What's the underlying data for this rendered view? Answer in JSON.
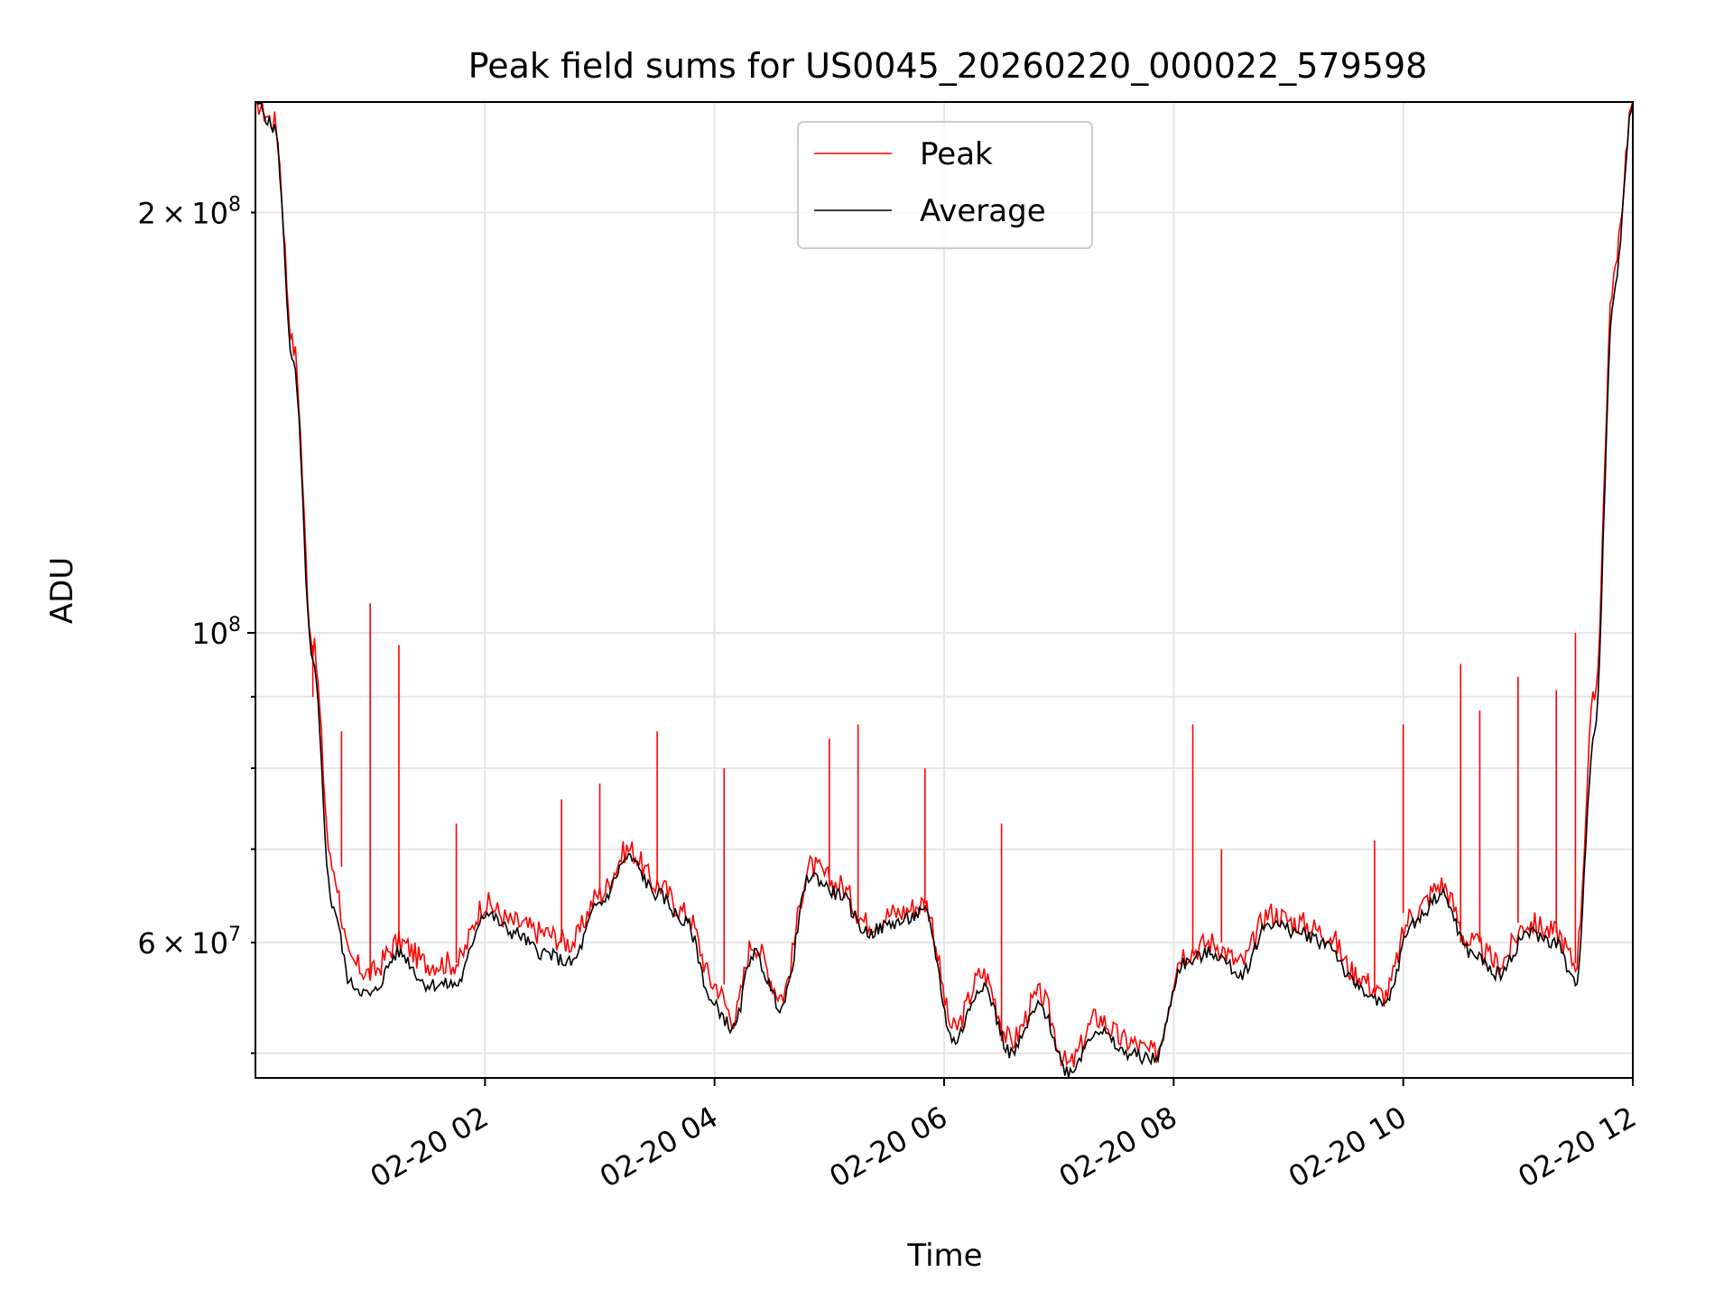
{
  "chart_data": {
    "type": "line",
    "title": "Peak field sums for US0045_20260220_000022_579598",
    "xlabel": "Time",
    "ylabel": "ADU",
    "x_range": [
      "2026-02-20 00:00",
      "2026-02-20 12:00"
    ],
    "ylim": [
      48000000,
      240000000
    ],
    "yscale": "log",
    "grid": true,
    "legend_position": "upper center",
    "x_ticks": [
      {
        "value": "2026-02-20 02:00",
        "label": "02-20 02"
      },
      {
        "value": "2026-02-20 04:00",
        "label": "02-20 04"
      },
      {
        "value": "2026-02-20 06:00",
        "label": "02-20 06"
      },
      {
        "value": "2026-02-20 08:00",
        "label": "02-20 08"
      },
      {
        "value": "2026-02-20 10:00",
        "label": "02-20 10"
      },
      {
        "value": "2026-02-20 12:00",
        "label": "02-20 12"
      }
    ],
    "y_ticks_major": [
      {
        "value": 100000000,
        "mantissa": "",
        "exponent": "8"
      }
    ],
    "y_ticks_minor": [
      {
        "value": 60000000,
        "mantissa": "6",
        "exponent": "7"
      },
      {
        "value": 200000000,
        "mantissa": "2",
        "exponent": "8"
      }
    ],
    "y_ticks_unlabeled": [
      50000000,
      70000000,
      80000000,
      90000000
    ],
    "series": [
      {
        "name": "Peak",
        "color": "#ff0000",
        "points": [
          [
            "2026-02-20 00:00",
            240000000
          ],
          [
            "2026-02-20 00:10",
            232000000
          ],
          [
            "2026-02-20 00:20",
            160000000
          ],
          [
            "2026-02-20 00:30",
            98000000
          ],
          [
            "2026-02-20 00:40",
            68000000
          ],
          [
            "2026-02-20 00:50",
            58000000
          ],
          [
            "2026-02-20 01:00",
            57000000
          ],
          [
            "2026-02-20 01:15",
            60000000
          ],
          [
            "2026-02-20 01:30",
            58000000
          ],
          [
            "2026-02-20 01:45",
            58000000
          ],
          [
            "2026-02-20 02:00",
            64000000
          ],
          [
            "2026-02-20 02:15",
            62000000
          ],
          [
            "2026-02-20 02:30",
            61000000
          ],
          [
            "2026-02-20 02:45",
            60000000
          ],
          [
            "2026-02-20 03:00",
            65000000
          ],
          [
            "2026-02-20 03:15",
            70000000
          ],
          [
            "2026-02-20 03:30",
            66000000
          ],
          [
            "2026-02-20 03:45",
            63000000
          ],
          [
            "2026-02-20 04:00",
            56000000
          ],
          [
            "2026-02-20 04:10",
            53000000
          ],
          [
            "2026-02-20 04:20",
            60000000
          ],
          [
            "2026-02-20 04:35",
            55000000
          ],
          [
            "2026-02-20 04:50",
            68000000
          ],
          [
            "2026-02-20 05:05",
            66000000
          ],
          [
            "2026-02-20 05:20",
            62000000
          ],
          [
            "2026-02-20 05:35",
            63000000
          ],
          [
            "2026-02-20 05:50",
            64000000
          ],
          [
            "2026-02-20 06:05",
            52000000
          ],
          [
            "2026-02-20 06:20",
            57000000
          ],
          [
            "2026-02-20 06:35",
            51000000
          ],
          [
            "2026-02-20 06:50",
            55000000
          ],
          [
            "2026-02-20 07:05",
            49000000
          ],
          [
            "2026-02-20 07:20",
            53000000
          ],
          [
            "2026-02-20 07:35",
            51000000
          ],
          [
            "2026-02-20 07:50",
            50000000
          ],
          [
            "2026-02-20 08:05",
            59000000
          ],
          [
            "2026-02-20 08:20",
            60000000
          ],
          [
            "2026-02-20 08:35",
            58000000
          ],
          [
            "2026-02-20 08:50",
            63000000
          ],
          [
            "2026-02-20 09:05",
            62000000
          ],
          [
            "2026-02-20 09:20",
            61000000
          ],
          [
            "2026-02-20 09:35",
            57000000
          ],
          [
            "2026-02-20 09:50",
            55000000
          ],
          [
            "2026-02-20 10:05",
            63000000
          ],
          [
            "2026-02-20 10:20",
            66000000
          ],
          [
            "2026-02-20 10:35",
            60000000
          ],
          [
            "2026-02-20 10:50",
            58000000
          ],
          [
            "2026-02-20 11:05",
            62000000
          ],
          [
            "2026-02-20 11:20",
            61000000
          ],
          [
            "2026-02-20 11:30",
            58000000
          ],
          [
            "2026-02-20 11:40",
            90000000
          ],
          [
            "2026-02-20 11:50",
            180000000
          ],
          [
            "2026-02-20 12:00",
            240000000
          ]
        ],
        "spikes": [
          [
            "2026-02-20 00:30",
            90000000
          ],
          [
            "2026-02-20 00:45",
            85000000
          ],
          [
            "2026-02-20 01:00",
            105000000
          ],
          [
            "2026-02-20 01:15",
            98000000
          ],
          [
            "2026-02-20 01:45",
            73000000
          ],
          [
            "2026-02-20 02:40",
            76000000
          ],
          [
            "2026-02-20 03:00",
            78000000
          ],
          [
            "2026-02-20 03:30",
            85000000
          ],
          [
            "2026-02-20 04:05",
            80000000
          ],
          [
            "2026-02-20 05:00",
            84000000
          ],
          [
            "2026-02-20 05:15",
            86000000
          ],
          [
            "2026-02-20 05:50",
            80000000
          ],
          [
            "2026-02-20 06:30",
            73000000
          ],
          [
            "2026-02-20 08:10",
            86000000
          ],
          [
            "2026-02-20 08:25",
            70000000
          ],
          [
            "2026-02-20 09:45",
            71000000
          ],
          [
            "2026-02-20 10:00",
            86000000
          ],
          [
            "2026-02-20 10:30",
            95000000
          ],
          [
            "2026-02-20 10:40",
            88000000
          ],
          [
            "2026-02-20 11:00",
            93000000
          ],
          [
            "2026-02-20 11:20",
            91000000
          ],
          [
            "2026-02-20 11:30",
            100000000
          ]
        ]
      },
      {
        "name": "Average",
        "color": "#000000",
        "points": [
          [
            "2026-02-20 00:00",
            240000000
          ],
          [
            "2026-02-20 00:10",
            230000000
          ],
          [
            "2026-02-20 00:20",
            155000000
          ],
          [
            "2026-02-20 00:30",
            95000000
          ],
          [
            "2026-02-20 00:40",
            64000000
          ],
          [
            "2026-02-20 00:50",
            56000000
          ],
          [
            "2026-02-20 01:00",
            55000000
          ],
          [
            "2026-02-20 01:15",
            59000000
          ],
          [
            "2026-02-20 01:30",
            56000000
          ],
          [
            "2026-02-20 01:45",
            56000000
          ],
          [
            "2026-02-20 02:00",
            63000000
          ],
          [
            "2026-02-20 02:15",
            61000000
          ],
          [
            "2026-02-20 02:30",
            59000000
          ],
          [
            "2026-02-20 02:45",
            58000000
          ],
          [
            "2026-02-20 03:00",
            64000000
          ],
          [
            "2026-02-20 03:15",
            69000000
          ],
          [
            "2026-02-20 03:30",
            65000000
          ],
          [
            "2026-02-20 03:45",
            62000000
          ],
          [
            "2026-02-20 04:00",
            54000000
          ],
          [
            "2026-02-20 04:10",
            52000000
          ],
          [
            "2026-02-20 04:20",
            59000000
          ],
          [
            "2026-02-20 04:35",
            54000000
          ],
          [
            "2026-02-20 04:50",
            67000000
          ],
          [
            "2026-02-20 05:05",
            65000000
          ],
          [
            "2026-02-20 05:20",
            61000000
          ],
          [
            "2026-02-20 05:35",
            62000000
          ],
          [
            "2026-02-20 05:50",
            63000000
          ],
          [
            "2026-02-20 06:05",
            51000000
          ],
          [
            "2026-02-20 06:20",
            56000000
          ],
          [
            "2026-02-20 06:35",
            50000000
          ],
          [
            "2026-02-20 06:50",
            54000000
          ],
          [
            "2026-02-20 07:05",
            48500000
          ],
          [
            "2026-02-20 07:20",
            52000000
          ],
          [
            "2026-02-20 07:35",
            50000000
          ],
          [
            "2026-02-20 07:50",
            49500000
          ],
          [
            "2026-02-20 08:05",
            58000000
          ],
          [
            "2026-02-20 08:20",
            59000000
          ],
          [
            "2026-02-20 08:35",
            57000000
          ],
          [
            "2026-02-20 08:50",
            62000000
          ],
          [
            "2026-02-20 09:05",
            61000000
          ],
          [
            "2026-02-20 09:20",
            60000000
          ],
          [
            "2026-02-20 09:35",
            56000000
          ],
          [
            "2026-02-20 09:50",
            54000000
          ],
          [
            "2026-02-20 10:05",
            62000000
          ],
          [
            "2026-02-20 10:20",
            65000000
          ],
          [
            "2026-02-20 10:35",
            59000000
          ],
          [
            "2026-02-20 10:50",
            57000000
          ],
          [
            "2026-02-20 11:05",
            61000000
          ],
          [
            "2026-02-20 11:20",
            60000000
          ],
          [
            "2026-02-20 11:30",
            56000000
          ],
          [
            "2026-02-20 11:40",
            85000000
          ],
          [
            "2026-02-20 11:50",
            175000000
          ],
          [
            "2026-02-20 12:00",
            240000000
          ]
        ]
      }
    ]
  }
}
